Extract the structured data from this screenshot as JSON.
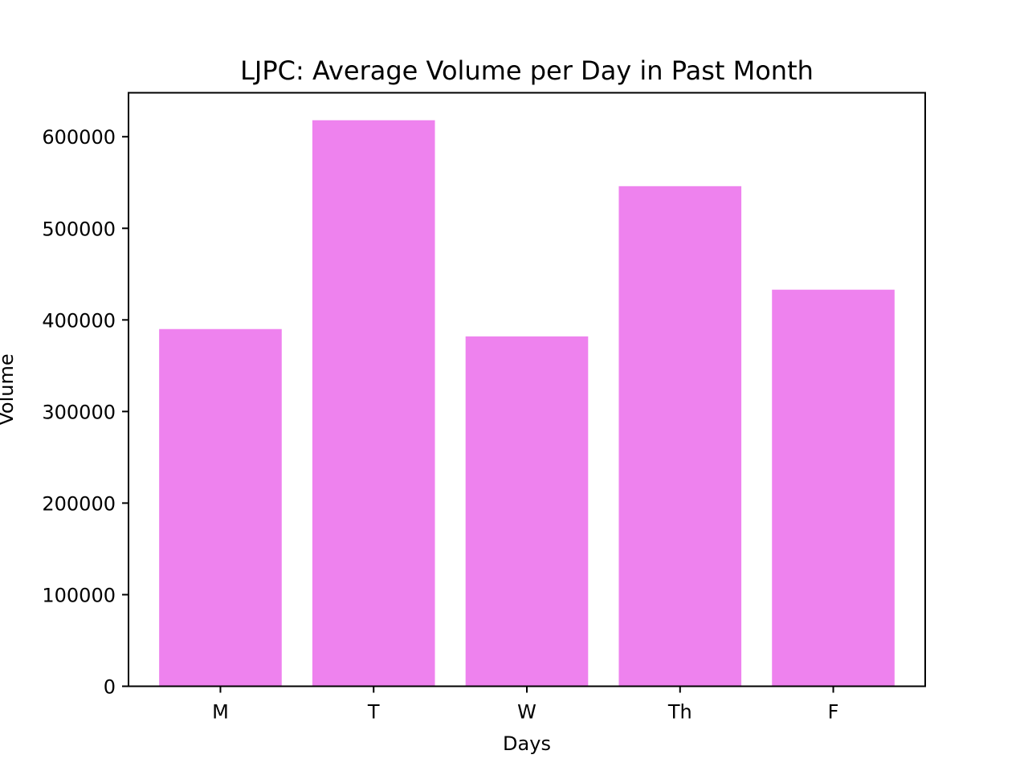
{
  "chart_data": {
    "type": "bar",
    "title": "LJPC: Average Volume per Day in Past Month",
    "xlabel": "Days",
    "ylabel": "Volume",
    "categories": [
      "M",
      "T",
      "W",
      "Th",
      "F"
    ],
    "values": [
      390000,
      618000,
      382000,
      546000,
      433000
    ],
    "ylim": [
      0,
      648000
    ],
    "yticks": [
      0,
      100000,
      200000,
      300000,
      400000,
      500000,
      600000
    ],
    "ytick_labels": [
      "0",
      "100000",
      "200000",
      "300000",
      "400000",
      "500000",
      "600000"
    ],
    "bar_color": "#ee82ee",
    "grid": false,
    "legend": "none"
  }
}
